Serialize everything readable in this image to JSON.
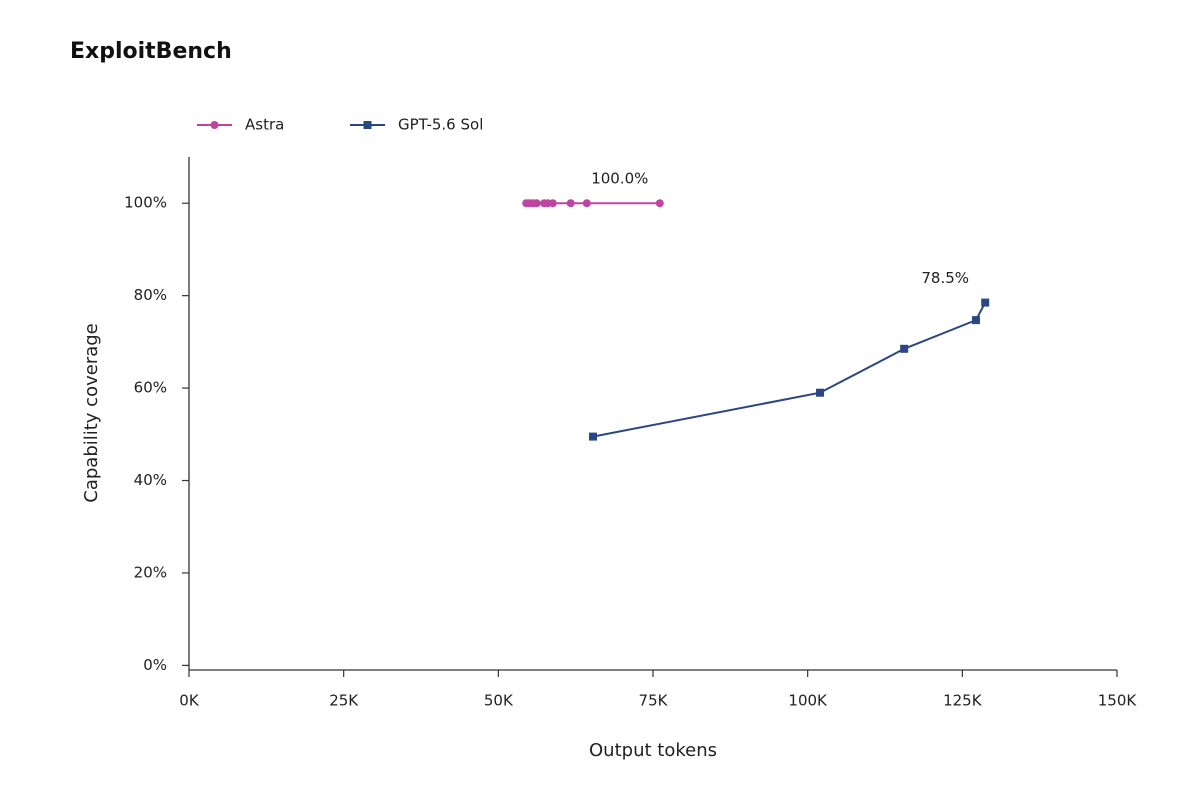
{
  "chart_data": {
    "type": "line",
    "title": "ExploitBench",
    "x_label": "Output tokens",
    "y_label": "Capability coverage",
    "xlim": [
      0,
      150
    ],
    "ylim": [
      -1,
      110
    ],
    "xticks": [
      {
        "value": 0,
        "label": "0K"
      },
      {
        "value": 25,
        "label": "25K"
      },
      {
        "value": 50,
        "label": "50K"
      },
      {
        "value": 75,
        "label": "75K"
      },
      {
        "value": 100,
        "label": "100K"
      },
      {
        "value": 125,
        "label": "125K"
      },
      {
        "value": 150,
        "label": "150K"
      }
    ],
    "yticks": [
      {
        "value": 0,
        "label": "0%"
      },
      {
        "value": 20,
        "label": "20%"
      },
      {
        "value": 40,
        "label": "40%"
      },
      {
        "value": 60,
        "label": "60%"
      },
      {
        "value": 80,
        "label": "80%"
      },
      {
        "value": 100,
        "label": "100%"
      }
    ],
    "grid": false,
    "series": [
      {
        "name": "Astra",
        "color": "#c0449f",
        "marker": "circle",
        "x": [
          54.5,
          55.0,
          55.6,
          56.2,
          57.4,
          58.0,
          58.8,
          61.7,
          64.3,
          76.1
        ],
        "values": [
          100,
          100,
          100,
          100,
          100,
          100,
          100,
          100,
          100,
          100
        ],
        "value_labels": [
          null,
          null,
          null,
          null,
          null,
          null,
          null,
          null,
          null,
          "100.0%"
        ]
      },
      {
        "name": "GPT-5.6 Sol",
        "color": "#2a4683",
        "marker": "square",
        "x": [
          65.3,
          102.0,
          115.6,
          127.2,
          128.7
        ],
        "values": [
          49.5,
          59.0,
          68.5,
          74.7,
          78.5
        ],
        "value_labels": [
          null,
          null,
          null,
          null,
          "78.5%"
        ]
      }
    ]
  }
}
